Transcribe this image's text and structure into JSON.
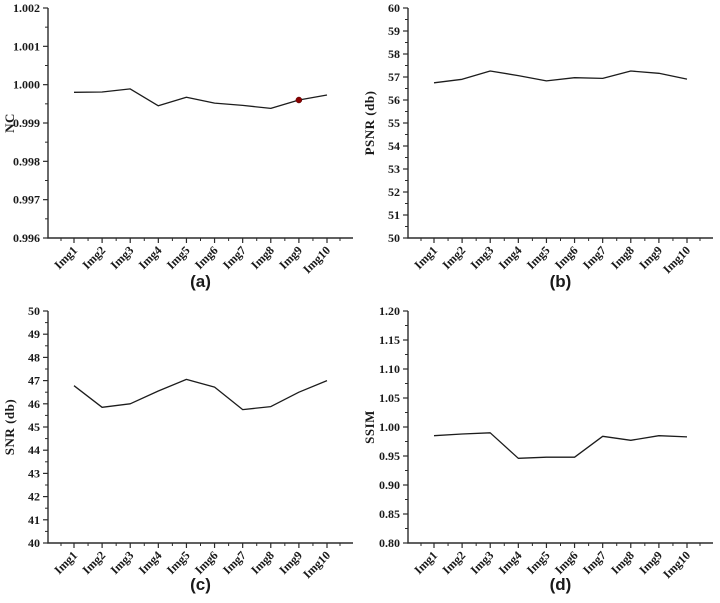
{
  "figure": {
    "background": "#ffffff",
    "axis_color": "#2b2b2b",
    "line_color": "#1c1c1c",
    "marker_color": "#8b0000",
    "text_color": "#1a1a1a"
  },
  "chart_data": [
    {
      "id": "a",
      "type": "line",
      "title": "",
      "xlabel": "",
      "ylabel": "NC",
      "sublabel": "(a)",
      "categories": [
        "Img1",
        "Img2",
        "Img3",
        "Img4",
        "Img5",
        "Img6",
        "Img7",
        "Img8",
        "Img9",
        "Img10"
      ],
      "values": [
        0.9998,
        0.99981,
        0.99989,
        0.99945,
        0.99967,
        0.99952,
        0.99946,
        0.99938,
        0.9996,
        0.99973
      ],
      "ylim": [
        0.996,
        1.002
      ],
      "yticks": [
        "0.996",
        "0.997",
        "0.998",
        "0.999",
        "1.000",
        "1.001",
        "1.002"
      ],
      "grid": false,
      "legend": "none",
      "marker": {
        "index": 8,
        "category": "Img9",
        "color": "#8b0000"
      }
    },
    {
      "id": "b",
      "type": "line",
      "title": "",
      "xlabel": "",
      "ylabel": "PSNR (db)",
      "sublabel": "(b)",
      "categories": [
        "Img1",
        "Img2",
        "Img3",
        "Img4",
        "Img5",
        "Img6",
        "Img7",
        "Img8",
        "Img9",
        "Img10"
      ],
      "values": [
        56.75,
        56.9,
        57.26,
        57.06,
        56.83,
        56.97,
        56.94,
        57.26,
        57.16,
        56.91
      ],
      "ylim": [
        50,
        60
      ],
      "yticks": [
        "50",
        "51",
        "52",
        "53",
        "54",
        "55",
        "56",
        "57",
        "58",
        "59",
        "60"
      ],
      "grid": false,
      "legend": "none",
      "marker": null
    },
    {
      "id": "c",
      "type": "line",
      "title": "",
      "xlabel": "",
      "ylabel": "SNR (db)",
      "sublabel": "(c)",
      "categories": [
        "Img1",
        "Img2",
        "Img3",
        "Img4",
        "Img5",
        "Img6",
        "Img7",
        "Img8",
        "Img9",
        "Img10"
      ],
      "values": [
        46.78,
        45.85,
        46.0,
        46.55,
        47.05,
        46.72,
        45.75,
        45.88,
        46.5,
        47.0
      ],
      "ylim": [
        40,
        50
      ],
      "yticks": [
        "40",
        "41",
        "42",
        "43",
        "44",
        "45",
        "46",
        "47",
        "48",
        "49",
        "50"
      ],
      "grid": false,
      "legend": "none",
      "marker": null
    },
    {
      "id": "d",
      "type": "line",
      "title": "",
      "xlabel": "",
      "ylabel": "SSIM",
      "sublabel": "(d)",
      "categories": [
        "Img1",
        "Img2",
        "Img3",
        "Img4",
        "Img5",
        "Img6",
        "Img7",
        "Img8",
        "Img9",
        "Img10"
      ],
      "values": [
        0.985,
        0.988,
        0.99,
        0.946,
        0.948,
        0.948,
        0.984,
        0.977,
        0.985,
        0.983
      ],
      "ylim": [
        0.8,
        1.2
      ],
      "yticks": [
        "0.80",
        "0.85",
        "0.90",
        "0.95",
        "1.00",
        "1.05",
        "1.10",
        "1.15",
        "1.20"
      ],
      "grid": false,
      "legend": "none",
      "marker": null
    }
  ]
}
